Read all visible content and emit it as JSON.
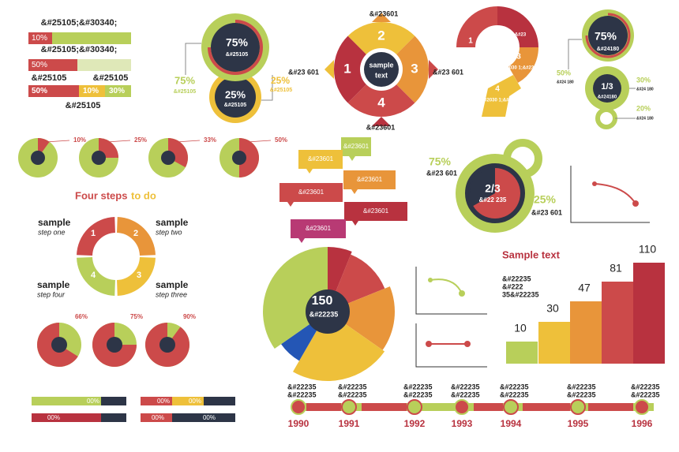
{
  "top_bars": {
    "bar1_title": "&#25105;&#30340;",
    "bar1_label": "10%",
    "bar2_title": "&#25105;&#30340;",
    "bar2_label": "50%",
    "bar3_title_a": "&#25105",
    "bar3_title_b": "&#25105",
    "bar3_labels": [
      "50%",
      "10%",
      "30%"
    ],
    "footer": "&#25105"
  },
  "twin_circles": {
    "top_value": "75%",
    "top_text": "&#25105",
    "bottom_value": "25%",
    "bottom_text": "&#25105",
    "left_value": "75%",
    "left_text": "&#25105",
    "right_value": "25%",
    "right_text": "&#25105"
  },
  "arrow_cycle": {
    "top": "&#23601",
    "bottom": "&#23601",
    "left": "&#23 601",
    "right": "&#23 601",
    "steps": [
      "1",
      "2",
      "3",
      "4"
    ],
    "center": [
      "sample",
      "text"
    ]
  },
  "question_mark": {
    "steps": [
      "1",
      "2",
      "3",
      "4"
    ],
    "texts": [
      "&#2030 1;&#23",
      "&#2030 1;&#23",
      "&#2030 1;&#23",
      "&#2030 1;&#23"
    ]
  },
  "stack_circles": {
    "top_value": "75%",
    "top_text": "&#24180",
    "mid_value": "1/3",
    "mid_text": "&#24180",
    "left_value": "50%",
    "left_text": "&#24 180",
    "right_value": "30%",
    "right_text": "&#24 180",
    "low_value": "20%",
    "low_text": "&#24 180"
  },
  "small_pies": [
    "10%",
    "25%",
    "33%",
    "50%"
  ],
  "four_steps": {
    "title": "Four steps",
    "title_accent": "to do",
    "numbers": [
      "1",
      "2",
      "3",
      "4"
    ],
    "items": [
      {
        "title": "sample",
        "subtitle": "step one"
      },
      {
        "title": "sample",
        "subtitle": "step two"
      },
      {
        "title": "sample",
        "subtitle": "step four"
      },
      {
        "title": "sample",
        "subtitle": "step three"
      }
    ]
  },
  "bottom_pies": [
    "66%",
    "75%",
    "90%"
  ],
  "bottom_bars": [
    "00%",
    "00%",
    "00%",
    "00%",
    "00%",
    "00%"
  ],
  "speech_boxes": [
    "&#23601",
    "&#23601",
    "&#23601",
    "&#23601",
    "&#23601",
    "&#23601"
  ],
  "ring_two_thirds": {
    "left_value": "75%",
    "left_text": "&#23 601",
    "center_value": "2/3",
    "center_text": "&#22 235",
    "right_value": "25%",
    "right_text": "&#23 601"
  },
  "big_pie": {
    "value": "150",
    "text": "&#22235"
  },
  "steps_chart": {
    "title": "Sample text",
    "lines": [
      "&#22235",
      "&#222",
      "35&#22235"
    ],
    "labels": [
      "10",
      "30",
      "47",
      "81",
      "110"
    ]
  },
  "timeline": {
    "years": [
      "1990",
      "1991",
      "1992",
      "1993",
      "1994",
      "1995",
      "1996"
    ],
    "labels": [
      [
        "&#22235",
        "&#22235"
      ],
      [
        "&#22235",
        "&#22235"
      ],
      [
        "&#22235",
        "&#22235"
      ],
      [
        "&#22235",
        "&#22235"
      ],
      [
        "&#22235",
        "&#22235"
      ],
      [
        "&#22235",
        "&#22235"
      ],
      [
        "&#22235",
        "&#22235"
      ]
    ]
  }
}
